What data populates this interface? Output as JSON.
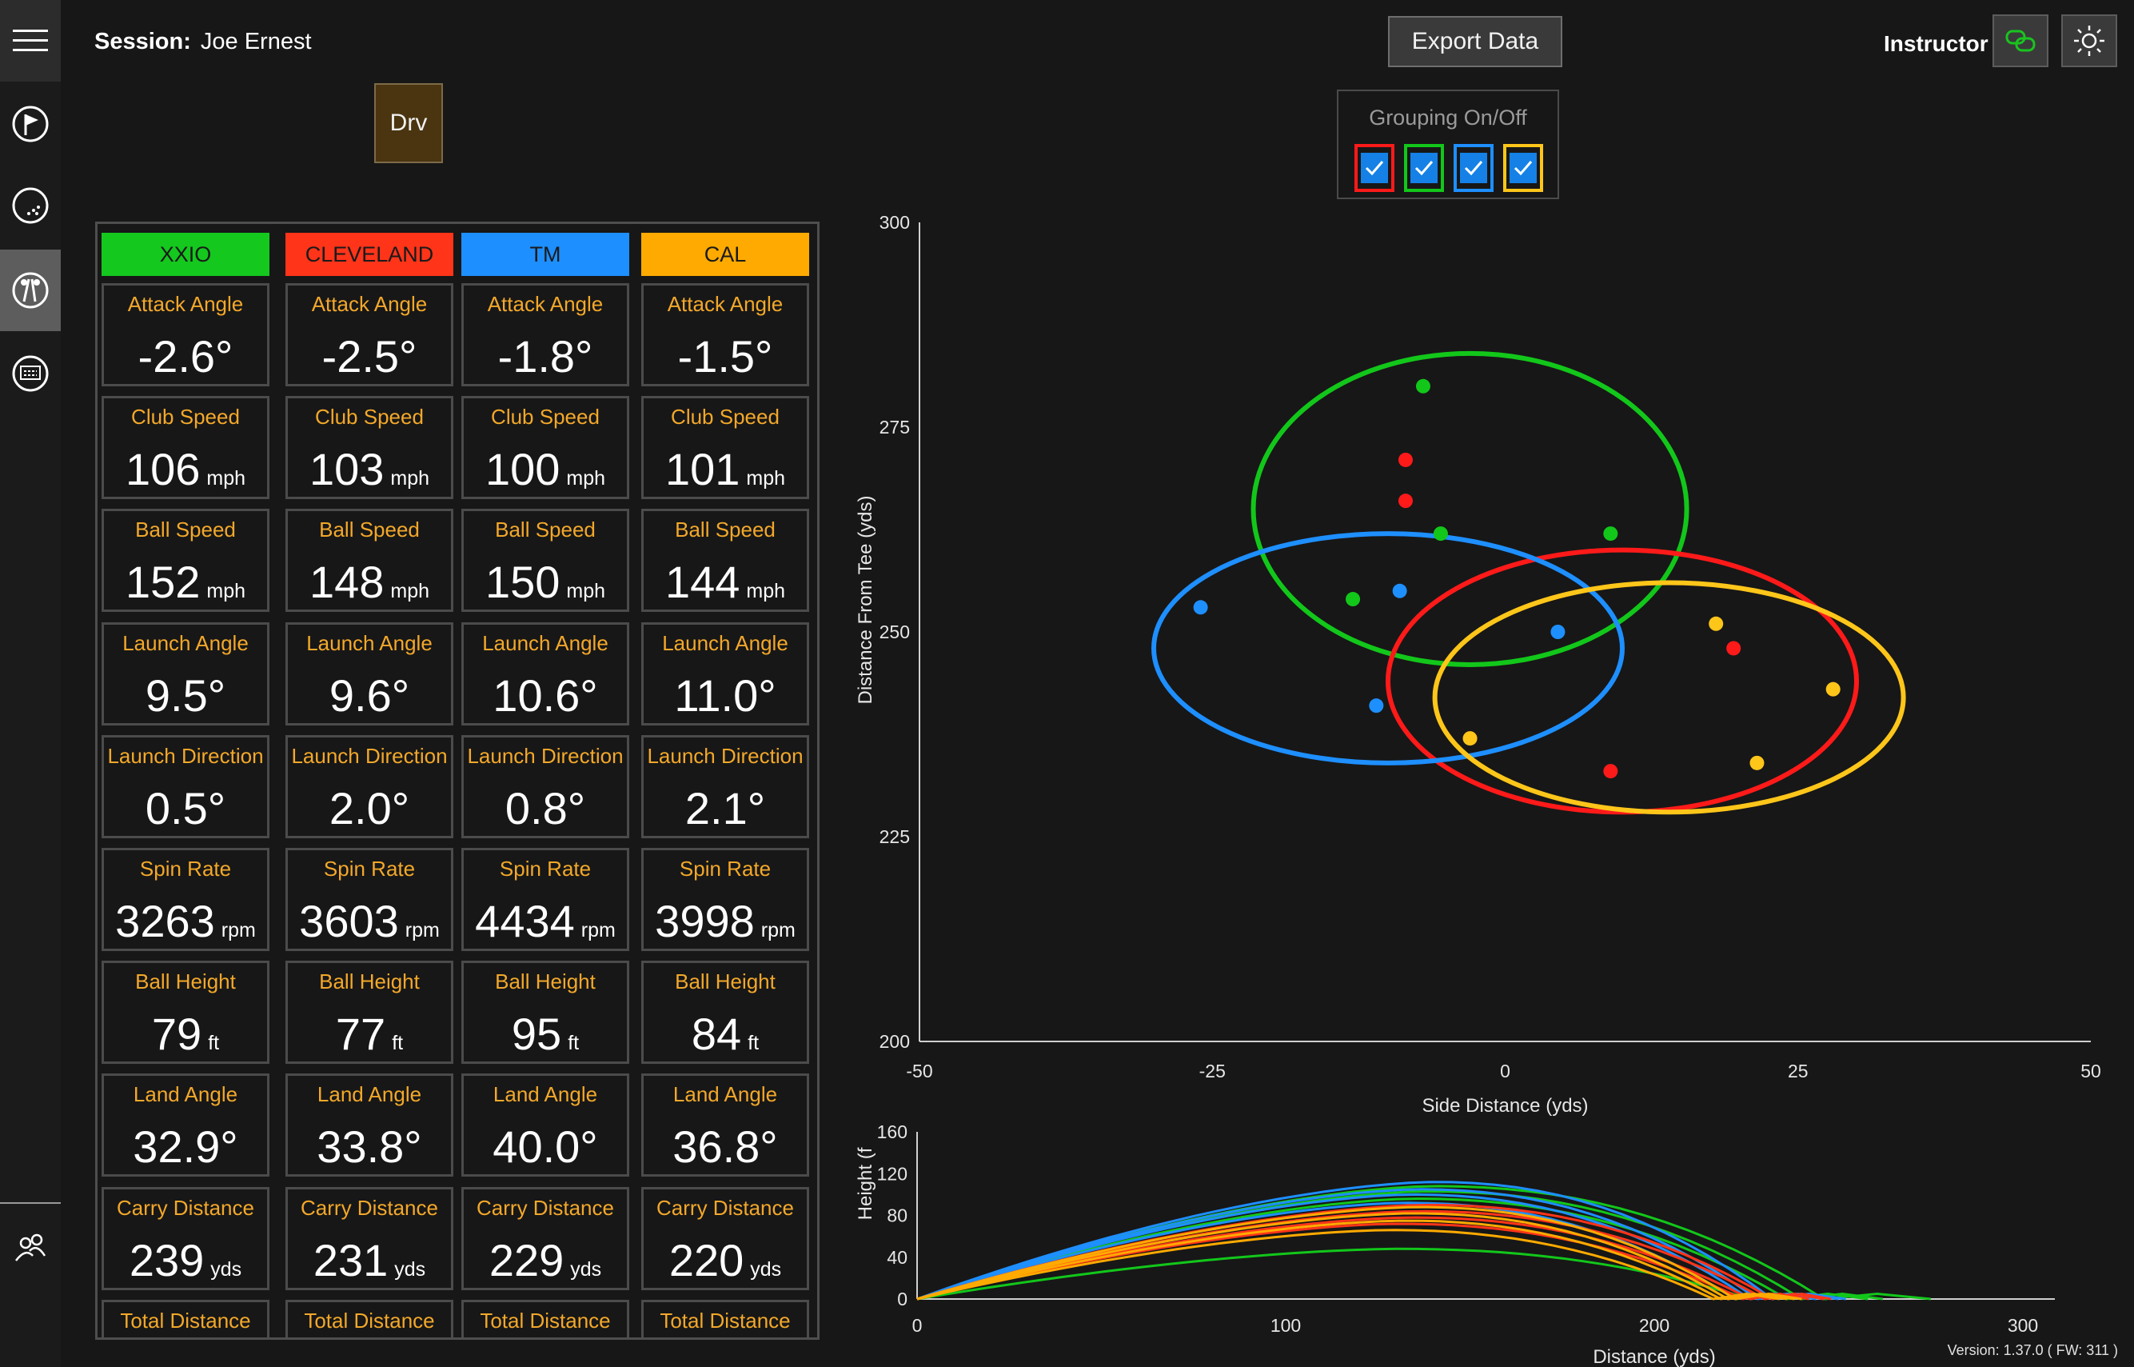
{
  "session": {
    "label": "Session:",
    "name": "Joe Ernest"
  },
  "toolbar": {
    "export_label": "Export Data",
    "role_label": "Instructor"
  },
  "club": {
    "label": "Drv"
  },
  "grouping": {
    "title": "Grouping On/Off",
    "toggles": [
      {
        "color": "#ff1a1a",
        "checked": true
      },
      {
        "color": "#12c71a",
        "checked": true
      },
      {
        "color": "#1e8fff",
        "checked": true
      },
      {
        "color": "#ffc61a",
        "checked": true
      }
    ]
  },
  "sidebar": {
    "items": [
      {
        "name": "menu",
        "icon": "hamburger-menu-icon"
      },
      {
        "name": "course",
        "icon": "flag-icon"
      },
      {
        "name": "ball",
        "icon": "golf-ball-icon"
      },
      {
        "name": "clubs",
        "icon": "golf-clubs-icon",
        "active": true
      },
      {
        "name": "display",
        "icon": "monitor-icon"
      },
      {
        "name": "users",
        "icon": "users-icon"
      }
    ]
  },
  "table": {
    "columns": [
      {
        "name": "XXIO",
        "color": "#14c81e"
      },
      {
        "name": "CLEVELAND",
        "color": "#ff3419"
      },
      {
        "name": "TM",
        "color": "#1e8fff"
      },
      {
        "name": "CAL",
        "color": "#ffaa00"
      }
    ],
    "rows": [
      {
        "label": "Attack Angle",
        "unit": "",
        "values": [
          "-2.6°",
          "-2.5°",
          "-1.8°",
          "-1.5°"
        ]
      },
      {
        "label": "Club Speed",
        "unit": "mph",
        "values": [
          "106",
          "103",
          "100",
          "101"
        ]
      },
      {
        "label": "Ball Speed",
        "unit": "mph",
        "values": [
          "152",
          "148",
          "150",
          "144"
        ]
      },
      {
        "label": "Launch Angle",
        "unit": "",
        "values": [
          "9.5°",
          "9.6°",
          "10.6°",
          "11.0°"
        ]
      },
      {
        "label": "Launch Direction",
        "unit": "",
        "values": [
          "0.5°",
          "2.0°",
          "0.8°",
          "2.1°"
        ]
      },
      {
        "label": "Spin Rate",
        "unit": "rpm",
        "values": [
          "3263",
          "3603",
          "4434",
          "3998"
        ]
      },
      {
        "label": "Ball Height",
        "unit": "ft",
        "values": [
          "79",
          "77",
          "95",
          "84"
        ]
      },
      {
        "label": "Land Angle",
        "unit": "",
        "values": [
          "32.9°",
          "33.8°",
          "40.0°",
          "36.8°"
        ]
      },
      {
        "label": "Carry Distance",
        "unit": "yds",
        "values": [
          "239",
          "231",
          "229",
          "220"
        ]
      },
      {
        "label": "Total Distance",
        "unit": "",
        "values": [
          "",
          "",
          "",
          ""
        ]
      }
    ]
  },
  "chart_data": [
    {
      "type": "scatter",
      "xlabel": "Side Distance (yds)",
      "ylabel": "Distance From Tee (yds)",
      "xlim": [
        -50,
        50
      ],
      "ylim": [
        200,
        300
      ],
      "xticks": [
        -50,
        -25,
        0,
        25,
        50
      ],
      "yticks": [
        200,
        225,
        250,
        275,
        300
      ],
      "grid": false,
      "series": [
        {
          "color": "#12c71a",
          "points": [
            [
              -7,
              280
            ],
            [
              -13,
              254
            ],
            [
              -5.5,
              262
            ],
            [
              9,
              262
            ]
          ],
          "ellipse": {
            "cx": -3,
            "cy": 265,
            "rx": 18.5,
            "ry": 19
          }
        },
        {
          "color": "#ff1a1a",
          "points": [
            [
              -8.5,
              271
            ],
            [
              -8.5,
              266
            ],
            [
              19.5,
              248
            ],
            [
              9,
              233
            ]
          ],
          "ellipse": {
            "cx": 10,
            "cy": 244,
            "rx": 20,
            "ry": 16
          }
        },
        {
          "color": "#1e8fff",
          "points": [
            [
              -26,
              253
            ],
            [
              -9,
              255
            ],
            [
              4.5,
              250
            ],
            [
              -11,
              241
            ]
          ],
          "ellipse": {
            "cx": -10,
            "cy": 248,
            "rx": 20,
            "ry": 14
          }
        },
        {
          "color": "#ffc61a",
          "points": [
            [
              18,
              251
            ],
            [
              28,
              243
            ],
            [
              -3,
              237
            ],
            [
              21.5,
              234
            ]
          ],
          "ellipse": {
            "cx": 14,
            "cy": 242,
            "rx": 20,
            "ry": 14
          }
        }
      ]
    },
    {
      "type": "line",
      "xlabel": "Distance (yds)",
      "ylabel": "Height (f",
      "xlim": [
        0,
        300
      ],
      "ylim": [
        0,
        160
      ],
      "xticks": [
        0,
        100,
        200,
        300
      ],
      "yticks": [
        0,
        40,
        80,
        120,
        160
      ],
      "trajectories": [
        {
          "color": "#12c71a",
          "peak_x": 140,
          "peak": 108,
          "carry": 246,
          "total": 275
        },
        {
          "color": "#12c71a",
          "peak_x": 138,
          "peak": 103,
          "carry": 240,
          "total": 262
        },
        {
          "color": "#12c71a",
          "peak_x": 135,
          "peak": 96,
          "carry": 236,
          "total": 258
        },
        {
          "color": "#12c71a",
          "peak_x": 130,
          "peak": 48,
          "carry": 226,
          "total": 247
        },
        {
          "color": "#1e8fff",
          "peak_x": 140,
          "peak": 112,
          "carry": 232,
          "total": 252
        },
        {
          "color": "#1e8fff",
          "peak_x": 136,
          "peak": 105,
          "carry": 228,
          "total": 250
        },
        {
          "color": "#1e8fff",
          "peak_x": 134,
          "peak": 100,
          "carry": 226,
          "total": 246
        },
        {
          "color": "#1e8fff",
          "peak_x": 132,
          "peak": 92,
          "carry": 222,
          "total": 244
        },
        {
          "color": "#ff3419",
          "peak_x": 138,
          "peak": 90,
          "carry": 232,
          "total": 248
        },
        {
          "color": "#ff3419",
          "peak_x": 136,
          "peak": 84,
          "carry": 230,
          "total": 246
        },
        {
          "color": "#ff3419",
          "peak_x": 134,
          "peak": 78,
          "carry": 226,
          "total": 242
        },
        {
          "color": "#ff3419",
          "peak_x": 130,
          "peak": 72,
          "carry": 224,
          "total": 240
        },
        {
          "color": "#ffaa00",
          "peak_x": 136,
          "peak": 88,
          "carry": 222,
          "total": 240
        },
        {
          "color": "#ffaa00",
          "peak_x": 134,
          "peak": 82,
          "carry": 220,
          "total": 238
        },
        {
          "color": "#ffaa00",
          "peak_x": 132,
          "peak": 75,
          "carry": 218,
          "total": 236
        },
        {
          "color": "#ffaa00",
          "peak_x": 128,
          "peak": 66,
          "carry": 216,
          "total": 234
        }
      ]
    }
  ],
  "footer": {
    "version": "Version: 1.37.0 ( FW: 311 )"
  }
}
